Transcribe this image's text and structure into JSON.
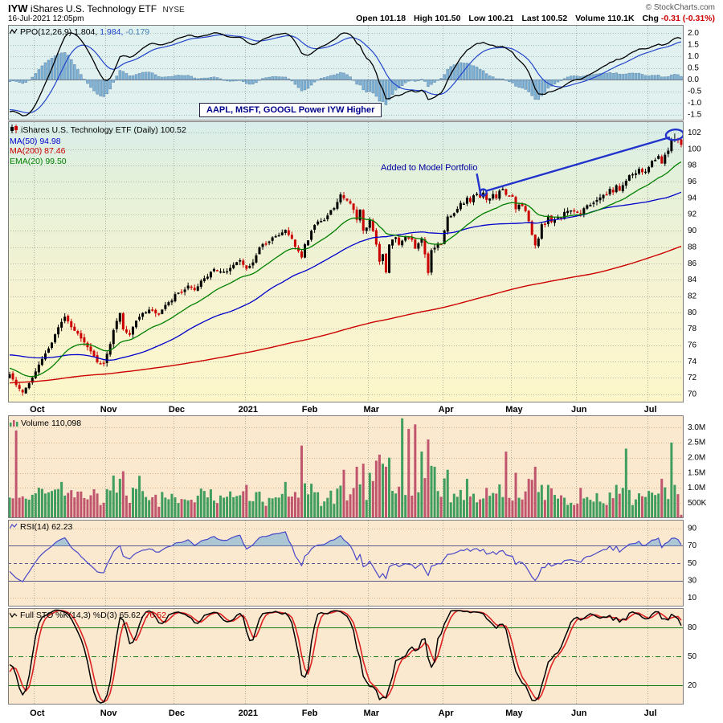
{
  "header": {
    "symbol": "IYW",
    "name": "iShares U.S. Technology ETF",
    "exchange": "NYSE",
    "datetime": "16-Jul-2021 12:05pm",
    "copyright": "© StockCharts.com",
    "quote": [
      {
        "label": "Open",
        "value": "101.18"
      },
      {
        "label": "High",
        "value": "101.50"
      },
      {
        "label": "Low",
        "value": "100.21"
      },
      {
        "label": "Last",
        "value": "100.52"
      },
      {
        "label": "Volume",
        "value": "110.1K"
      },
      {
        "label": "Chg",
        "value": "-0.31 (-0.31%)"
      }
    ]
  },
  "panels": {
    "ppo": {
      "label": "PPO(12,26,9)",
      "v1": "1.804,",
      "v2": "1.984,",
      "v3": "-0.179"
    },
    "main": {
      "title": "iShares U.S. Technology ETF (Daily)",
      "last": "100.52",
      "ma50": "MA(50) 94.98",
      "ma200": "MA(200) 87.46",
      "ema20": "EMA(20) 99.50"
    },
    "volume": {
      "legend": "Volume 110,098"
    },
    "rsi": {
      "legend": "RSI(14) 62.23"
    },
    "sto": {
      "label": "Full STO %K(14,3) %D(3)",
      "k": "65.62,",
      "d": "76.52"
    }
  },
  "annotations": {
    "callout": "AAPL, MSFT, GOOGL Power IYW Higher",
    "portfolio": "Added to Model Portfolio"
  },
  "chart_data": {
    "type": "candlestick",
    "title": "iShares U.S. Technology ETF (Daily)",
    "n_days": 208,
    "months": [
      [
        "Oct",
        8
      ],
      [
        "Nov",
        30
      ],
      [
        "Dec",
        51
      ],
      [
        "2021",
        73
      ],
      [
        "Feb",
        92
      ],
      [
        "Mar",
        111
      ],
      [
        "Apr",
        134
      ],
      [
        "May",
        155
      ],
      [
        "Jun",
        175
      ],
      [
        "Jul",
        197
      ]
    ],
    "last_ohlc": [
      101.18,
      101.5,
      100.21,
      100.52
    ],
    "pre_close_anchors": [
      [
        -200,
        66.5
      ],
      [
        -170,
        68.5
      ],
      [
        -140,
        70.5
      ],
      [
        -110,
        71.3
      ],
      [
        -80,
        71.0
      ],
      [
        -60,
        72.5
      ],
      [
        -45,
        73.5
      ],
      [
        -34,
        75.5
      ],
      [
        -26,
        78.5
      ],
      [
        -22,
        79.6
      ],
      [
        -19,
        77.0
      ],
      [
        -16,
        74.0
      ],
      [
        -13,
        72.3
      ],
      [
        -10,
        74.0
      ],
      [
        -8,
        73.0
      ],
      [
        -5,
        71.0
      ],
      [
        -2,
        72.0
      ]
    ],
    "close_anchors": [
      [
        0,
        72.5
      ],
      [
        2,
        71.3
      ],
      [
        4,
        70.1
      ],
      [
        6,
        71.5
      ],
      [
        8,
        72.9
      ],
      [
        11,
        74.9
      ],
      [
        14,
        77.2
      ],
      [
        16,
        78.9
      ],
      [
        17,
        79.6
      ],
      [
        19,
        78.1
      ],
      [
        21,
        77.3
      ],
      [
        24,
        75.7
      ],
      [
        27,
        74.1
      ],
      [
        29,
        73.6
      ],
      [
        30,
        74.8
      ],
      [
        31,
        76.2
      ],
      [
        32,
        77.9
      ],
      [
        34,
        79.9
      ],
      [
        35,
        78.0
      ],
      [
        37,
        77.3
      ],
      [
        39,
        79.1
      ],
      [
        41,
        79.9
      ],
      [
        44,
        80.3
      ],
      [
        46,
        80.0
      ],
      [
        48,
        81.0
      ],
      [
        50,
        81.3
      ],
      [
        51,
        82.0
      ],
      [
        53,
        82.6
      ],
      [
        55,
        83.1
      ],
      [
        57,
        82.8
      ],
      [
        59,
        83.9
      ],
      [
        61,
        84.5
      ],
      [
        63,
        85.3
      ],
      [
        65,
        85.0
      ],
      [
        67,
        85.2
      ],
      [
        69,
        86.0
      ],
      [
        71,
        86.4
      ],
      [
        73,
        85.6
      ],
      [
        75,
        86.3
      ],
      [
        77,
        88.0
      ],
      [
        79,
        88.4
      ],
      [
        81,
        89.1
      ],
      [
        83,
        89.6
      ],
      [
        85,
        90.3
      ],
      [
        87,
        89.2
      ],
      [
        88,
        88.0
      ],
      [
        90,
        86.6
      ],
      [
        91,
        88.3
      ],
      [
        92,
        88.9
      ],
      [
        93,
        90.2
      ],
      [
        94,
        90.8
      ],
      [
        96,
        91.2
      ],
      [
        98,
        91.9
      ],
      [
        100,
        92.8
      ],
      [
        101,
        93.5
      ],
      [
        102,
        94.4
      ],
      [
        103,
        94.1
      ],
      [
        105,
        93.4
      ],
      [
        106,
        92.5
      ],
      [
        107,
        91.1
      ],
      [
        108,
        92.6
      ],
      [
        109,
        90.1
      ],
      [
        110,
        90.4
      ],
      [
        111,
        91.5
      ],
      [
        112,
        90.2
      ],
      [
        113,
        88.5
      ],
      [
        114,
        86.2
      ],
      [
        115,
        86.9
      ],
      [
        116,
        84.9
      ],
      [
        117,
        88.3
      ],
      [
        119,
        89.1
      ],
      [
        120,
        88.2
      ],
      [
        122,
        89.3
      ],
      [
        124,
        88.9
      ],
      [
        125,
        87.7
      ],
      [
        127,
        89.0
      ],
      [
        128,
        87.2
      ],
      [
        129,
        85.0
      ],
      [
        130,
        87.8
      ],
      [
        132,
        88.5
      ],
      [
        133,
        88.3
      ],
      [
        134,
        89.9
      ],
      [
        135,
        91.7
      ],
      [
        137,
        92.2
      ],
      [
        138,
        92.6
      ],
      [
        139,
        93.3
      ],
      [
        140,
        93.3
      ],
      [
        141,
        94.1
      ],
      [
        142,
        93.5
      ],
      [
        143,
        94.3
      ],
      [
        144,
        94.6
      ],
      [
        145,
        94.2
      ],
      [
        146,
        94.7
      ],
      [
        147,
        93.6
      ],
      [
        148,
        93.9
      ],
      [
        149,
        94.5
      ],
      [
        150,
        94.0
      ],
      [
        151,
        94.9
      ],
      [
        152,
        95.2
      ],
      [
        153,
        94.6
      ],
      [
        154,
        94.4
      ],
      [
        155,
        94.3
      ],
      [
        156,
        92.7
      ],
      [
        157,
        93.3
      ],
      [
        158,
        93.0
      ],
      [
        159,
        92.3
      ],
      [
        160,
        91.2
      ],
      [
        161,
        89.5
      ],
      [
        162,
        88.3
      ],
      [
        163,
        89.2
      ],
      [
        164,
        90.8
      ],
      [
        165,
        90.6
      ],
      [
        166,
        91.6
      ],
      [
        167,
        90.9
      ],
      [
        168,
        91.4
      ],
      [
        169,
        91.7
      ],
      [
        170,
        91.5
      ],
      [
        171,
        92.3
      ],
      [
        172,
        92.4
      ],
      [
        174,
        92.5
      ],
      [
        175,
        92.4
      ],
      [
        176,
        92.2
      ],
      [
        177,
        92.8
      ],
      [
        178,
        93.2
      ],
      [
        180,
        93.5
      ],
      [
        181,
        93.9
      ],
      [
        182,
        94.1
      ],
      [
        183,
        94.4
      ],
      [
        184,
        94.5
      ],
      [
        185,
        95.0
      ],
      [
        186,
        94.6
      ],
      [
        187,
        95.6
      ],
      [
        188,
        94.9
      ],
      [
        189,
        95.6
      ],
      [
        190,
        96.1
      ],
      [
        191,
        96.6
      ],
      [
        192,
        96.9
      ],
      [
        193,
        97.0
      ],
      [
        194,
        97.4
      ],
      [
        195,
        97.2
      ],
      [
        196,
        97.4
      ],
      [
        197,
        97.8
      ],
      [
        198,
        98.5
      ],
      [
        199,
        98.6
      ],
      [
        200,
        99.0
      ],
      [
        201,
        98.2
      ],
      [
        202,
        99.2
      ],
      [
        203,
        99.6
      ],
      [
        204,
        100.9
      ],
      [
        205,
        101.2
      ],
      [
        206,
        101.0
      ],
      [
        207,
        100.52
      ]
    ],
    "volume_last": 110098,
    "volume_spikes": [
      [
        2,
        2900000
      ],
      [
        16,
        1200000
      ],
      [
        34,
        1300000
      ],
      [
        40,
        1400000
      ],
      [
        60,
        900000
      ],
      [
        73,
        1100000
      ],
      [
        85,
        1200000
      ],
      [
        90,
        2400000
      ],
      [
        103,
        1600000
      ],
      [
        107,
        1700000
      ],
      [
        109,
        1800000
      ],
      [
        111,
        1500000
      ],
      [
        113,
        1900000
      ],
      [
        114,
        2100000
      ],
      [
        115,
        1800000
      ],
      [
        116,
        1700000
      ],
      [
        117,
        2000000
      ],
      [
        121,
        3300000
      ],
      [
        123,
        2950000
      ],
      [
        125,
        3100000
      ],
      [
        127,
        2200000
      ],
      [
        129,
        2600000
      ],
      [
        131,
        1700000
      ],
      [
        135,
        1600000
      ],
      [
        141,
        1300000
      ],
      [
        147,
        1000000
      ],
      [
        153,
        2200000
      ],
      [
        156,
        1500000
      ],
      [
        160,
        1300000
      ],
      [
        162,
        1700000
      ],
      [
        164,
        1100000
      ],
      [
        176,
        1000000
      ],
      [
        187,
        1100000
      ],
      [
        190,
        2300000
      ],
      [
        197,
        900000
      ],
      [
        201,
        1300000
      ],
      [
        204,
        2500000
      ],
      [
        205,
        1100000
      ]
    ],
    "indicators": {
      "ma_fast": 50,
      "ma_slow": 200,
      "ema": 20,
      "ppo": [
        12,
        26,
        9
      ],
      "rsi": 14,
      "sto": [
        14,
        3,
        3
      ]
    },
    "panel_scales": {
      "ppo": {
        "ylim": [
          -1.75,
          2.35
        ],
        "ticks": [
          [
            "2.0",
            2
          ],
          [
            "1.5",
            1.5
          ],
          [
            "1.0",
            1
          ],
          [
            "0.5",
            0.5
          ],
          [
            "0.0",
            0
          ],
          [
            "-0.5",
            -0.5
          ],
          [
            "-1.0",
            -1
          ],
          [
            "-1.5",
            -1.5
          ]
        ]
      },
      "price": {
        "ylim": [
          69.0,
          103.4
        ],
        "ticks": [
          70,
          72,
          74,
          76,
          78,
          80,
          82,
          84,
          86,
          88,
          90,
          92,
          94,
          96,
          98,
          100,
          102
        ]
      },
      "volume": {
        "ylim": [
          0,
          3400000
        ],
        "ticks": [
          [
            "3.0M",
            3000000
          ],
          [
            "2.5M",
            2500000
          ],
          [
            "2.0M",
            2000000
          ],
          [
            "1.5M",
            1500000
          ],
          [
            "1.0M",
            1000000
          ],
          [
            "500K",
            500000
          ]
        ]
      },
      "rsi": {
        "ylim": [
          0,
          100
        ],
        "ticks": [
          90,
          70,
          50,
          30,
          10
        ],
        "solid_levels": [
          70,
          30
        ],
        "dashed_level": 50,
        "dotted_levels": [
          90,
          10
        ],
        "overbought": 70
      },
      "sto": {
        "ylim": [
          0,
          100
        ],
        "ticks": [
          80,
          50,
          20
        ],
        "solid_levels": [
          80,
          20
        ],
        "dashdot_level": 50
      }
    },
    "colors": {
      "up": "#000000",
      "down": "#cc0000",
      "ma50": "#0000cc",
      "ma200": "#cc0000",
      "ema20": "#008000",
      "volUp": "#3f9e5f",
      "volDown": "#c0556e",
      "rsi": "#4646c8",
      "rsiShade": "rgba(130,180,215,0.65)",
      "stoK": "#000000",
      "stoD": "#dd2222",
      "ppoLine": "#000000",
      "ppoSignal": "#2244cc",
      "ppoHist": "#7fb2d4",
      "annot": "#2233cc",
      "bgPpo": "#e0f1ef",
      "bgTan": "#fbe9cf",
      "gridTan": "rgba(200,152,104,0.7)",
      "levelNavy": "#5a5a8f",
      "levelGreen": "#0f7a0f"
    },
    "annotation_arrow": {
      "pointer": [
        144,
        97.0
      ],
      "circle": [
        146,
        94.7
      ],
      "line_to": [
        203.5,
        101.45
      ],
      "ellipse": [
        205,
        101.75
      ]
    }
  }
}
